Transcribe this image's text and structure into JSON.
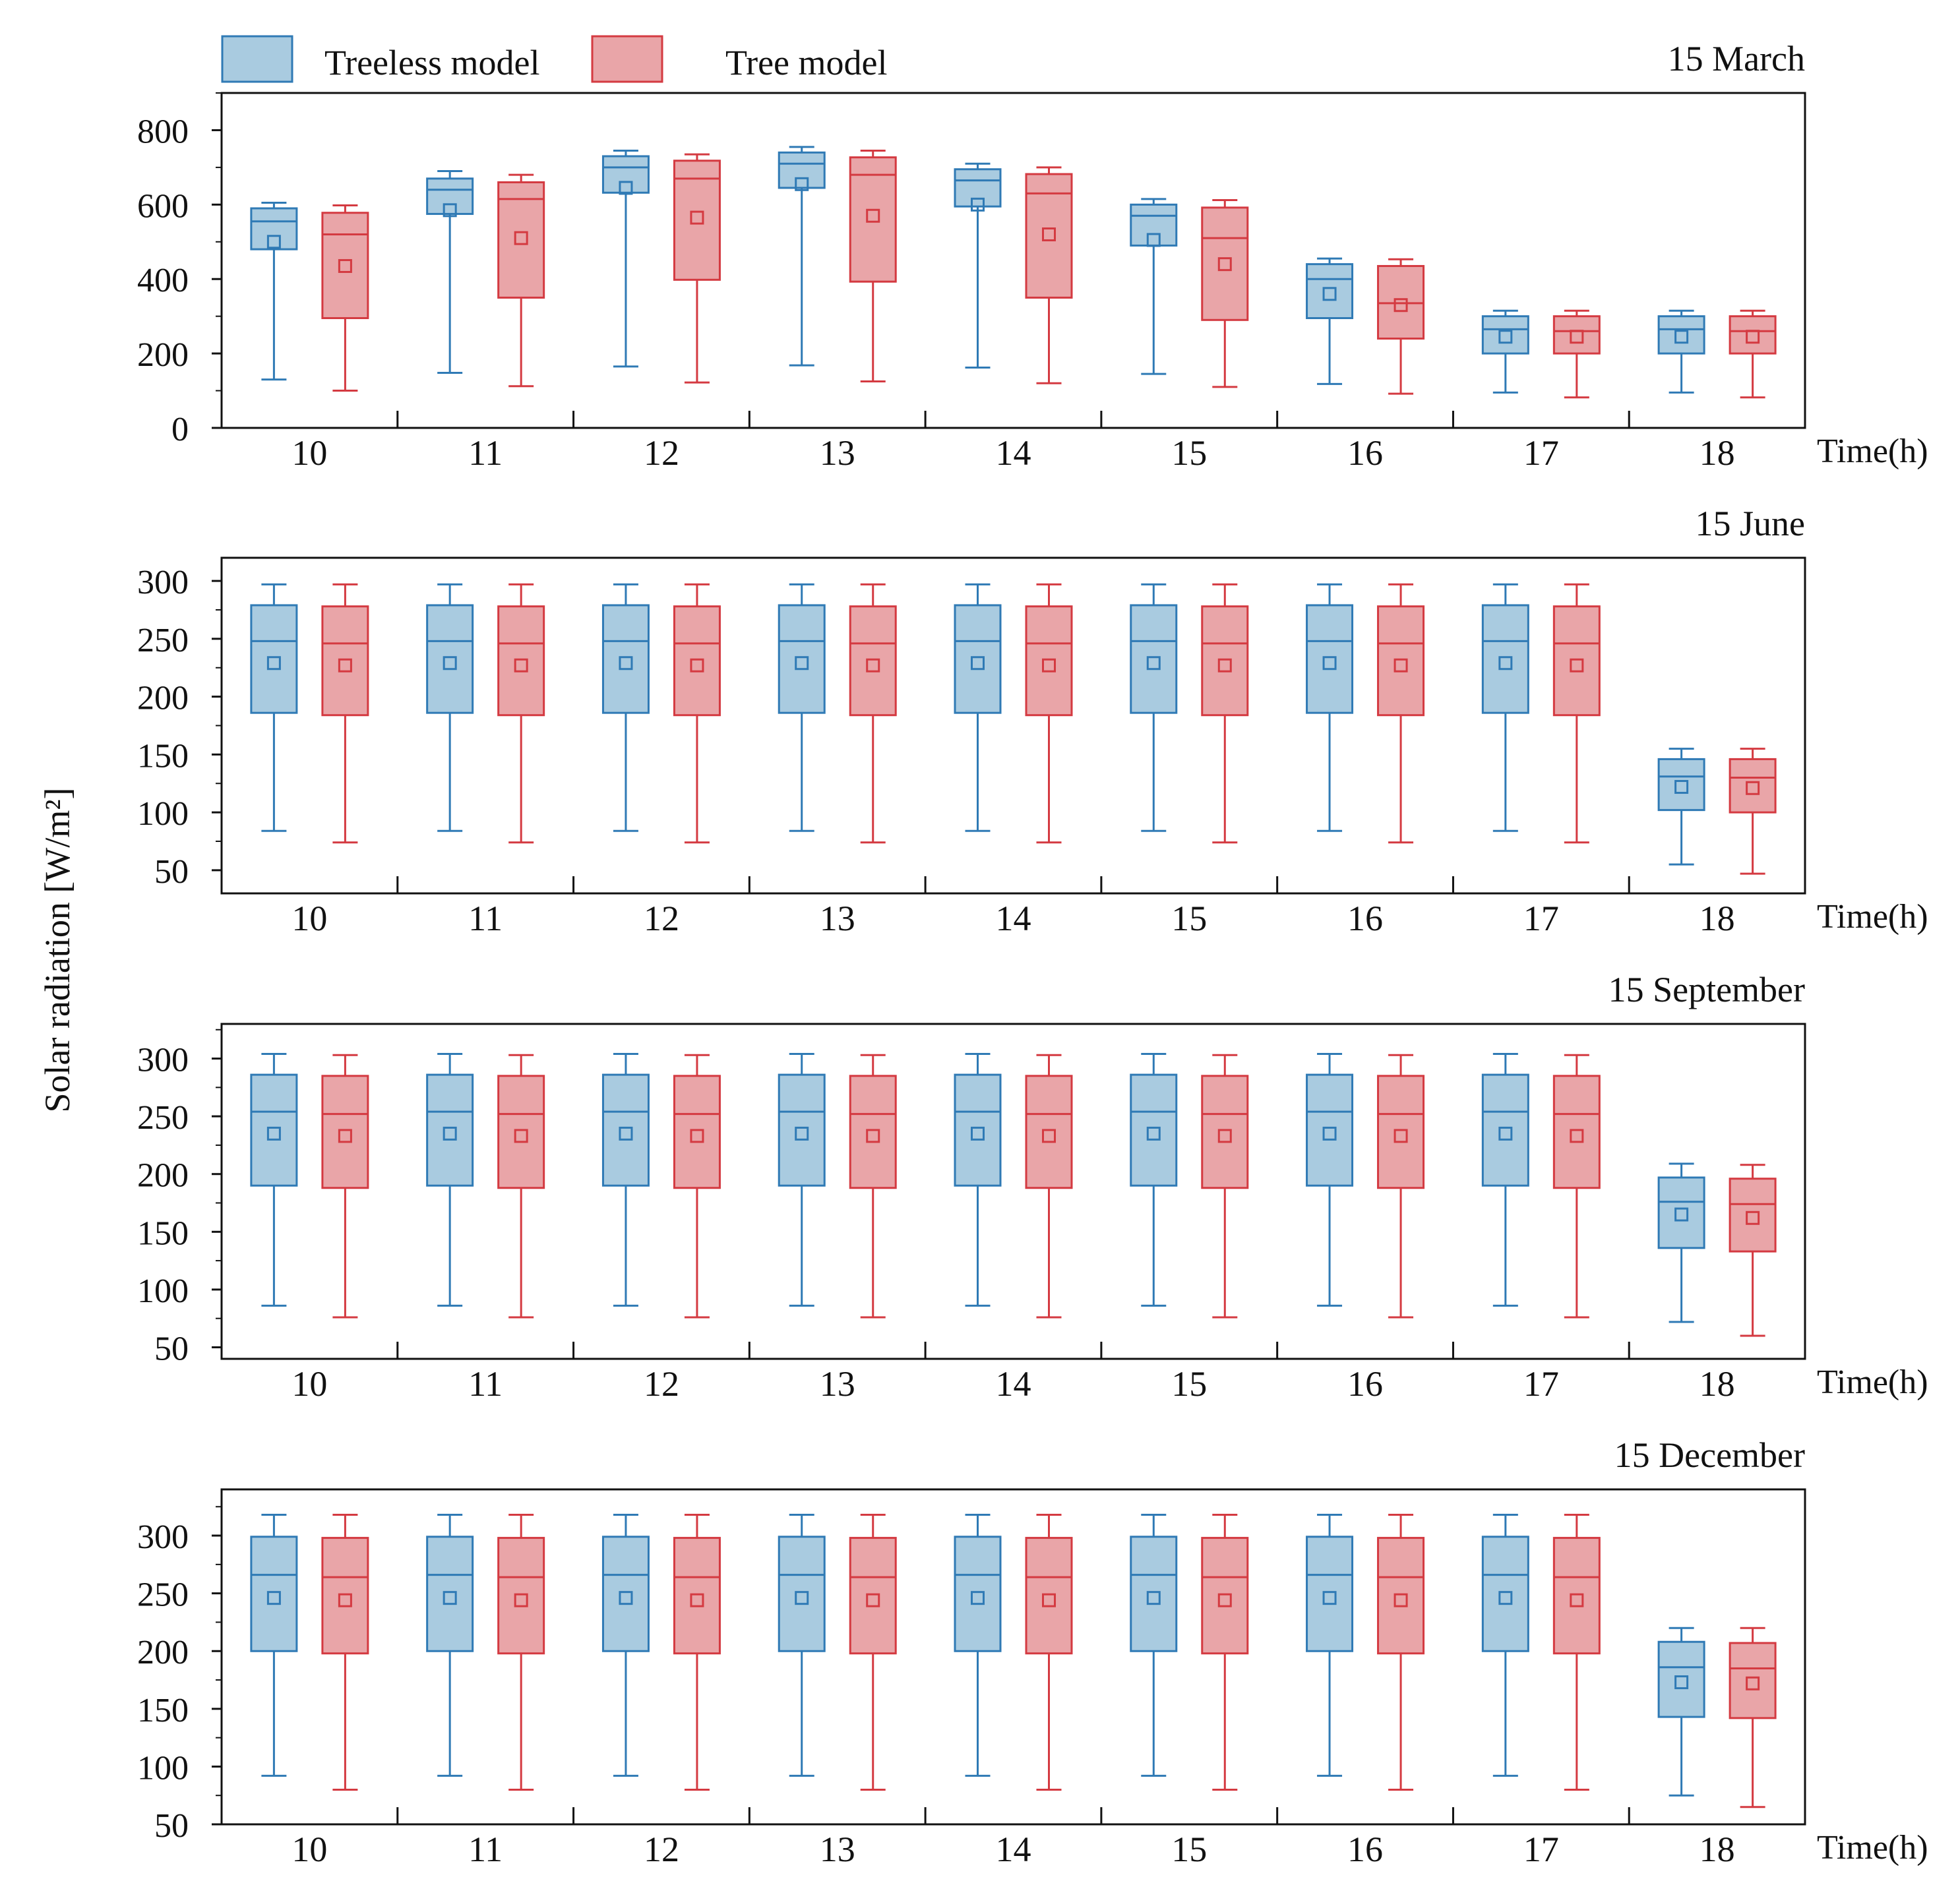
{
  "legend": {
    "items": [
      {
        "label": "Treeless model",
        "color_fill": "#a9cbe0",
        "color_stroke": "#2f7ab5"
      },
      {
        "label": "Tree model",
        "color_fill": "#e9a5a8",
        "color_stroke": "#d43a41"
      }
    ]
  },
  "y_axis_label": "Solar radiation [W/m²]",
  "time_label": "Time(h)",
  "chart_data": [
    {
      "type": "box",
      "title": "15 March",
      "xlabel": "Time(h)",
      "ylabel": "Solar radiation [W/m²]",
      "ylim": [
        0,
        900
      ],
      "yticks": [
        0,
        200,
        400,
        600,
        800
      ],
      "categories": [
        "10",
        "11",
        "12",
        "13",
        "14",
        "15",
        "16",
        "17",
        "18"
      ],
      "series": [
        {
          "name": "Treeless model",
          "boxes": [
            {
              "min": 130,
              "q1": 480,
              "median": 555,
              "q3": 590,
              "max": 605,
              "mean": 500
            },
            {
              "min": 148,
              "q1": 575,
              "median": 640,
              "q3": 670,
              "max": 690,
              "mean": 585
            },
            {
              "min": 165,
              "q1": 632,
              "median": 700,
              "q3": 730,
              "max": 745,
              "mean": 645
            },
            {
              "min": 168,
              "q1": 645,
              "median": 710,
              "q3": 740,
              "max": 755,
              "mean": 655
            },
            {
              "min": 162,
              "q1": 595,
              "median": 665,
              "q3": 695,
              "max": 710,
              "mean": 600
            },
            {
              "min": 145,
              "q1": 490,
              "median": 570,
              "q3": 600,
              "max": 615,
              "mean": 505
            },
            {
              "min": 118,
              "q1": 295,
              "median": 400,
              "q3": 440,
              "max": 455,
              "mean": 360
            },
            {
              "min": 95,
              "q1": 200,
              "median": 265,
              "q3": 300,
              "max": 315,
              "mean": 245
            },
            {
              "min": 95,
              "q1": 200,
              "median": 265,
              "q3": 300,
              "max": 315,
              "mean": 245
            }
          ]
        },
        {
          "name": "Tree model",
          "boxes": [
            {
              "min": 100,
              "q1": 295,
              "median": 520,
              "q3": 578,
              "max": 598,
              "mean": 435
            },
            {
              "min": 112,
              "q1": 350,
              "median": 615,
              "q3": 660,
              "max": 680,
              "mean": 510
            },
            {
              "min": 122,
              "q1": 398,
              "median": 670,
              "q3": 718,
              "max": 735,
              "mean": 565
            },
            {
              "min": 125,
              "q1": 393,
              "median": 680,
              "q3": 727,
              "max": 745,
              "mean": 570
            },
            {
              "min": 120,
              "q1": 350,
              "median": 630,
              "q3": 682,
              "max": 700,
              "mean": 520
            },
            {
              "min": 110,
              "q1": 290,
              "median": 510,
              "q3": 592,
              "max": 612,
              "mean": 440
            },
            {
              "min": 92,
              "q1": 240,
              "median": 335,
              "q3": 435,
              "max": 453,
              "mean": 330
            },
            {
              "min": 82,
              "q1": 200,
              "median": 260,
              "q3": 300,
              "max": 315,
              "mean": 245
            },
            {
              "min": 82,
              "q1": 200,
              "median": 260,
              "q3": 300,
              "max": 315,
              "mean": 245
            }
          ]
        }
      ]
    },
    {
      "type": "box",
      "title": "15 June",
      "xlabel": "Time(h)",
      "ylabel": "Solar radiation [W/m²]",
      "ylim": [
        30,
        320
      ],
      "yticks": [
        50,
        100,
        150,
        200,
        250,
        300
      ],
      "categories": [
        "10",
        "11",
        "12",
        "13",
        "14",
        "15",
        "16",
        "17",
        "18"
      ],
      "series": [
        {
          "name": "Treeless model",
          "boxes": [
            {
              "min": 84,
              "q1": 186,
              "median": 248,
              "q3": 279,
              "max": 297,
              "mean": 229
            },
            {
              "min": 84,
              "q1": 186,
              "median": 248,
              "q3": 279,
              "max": 297,
              "mean": 229
            },
            {
              "min": 84,
              "q1": 186,
              "median": 248,
              "q3": 279,
              "max": 297,
              "mean": 229
            },
            {
              "min": 84,
              "q1": 186,
              "median": 248,
              "q3": 279,
              "max": 297,
              "mean": 229
            },
            {
              "min": 84,
              "q1": 186,
              "median": 248,
              "q3": 279,
              "max": 297,
              "mean": 229
            },
            {
              "min": 84,
              "q1": 186,
              "median": 248,
              "q3": 279,
              "max": 297,
              "mean": 229
            },
            {
              "min": 84,
              "q1": 186,
              "median": 248,
              "q3": 279,
              "max": 297,
              "mean": 229
            },
            {
              "min": 84,
              "q1": 186,
              "median": 248,
              "q3": 279,
              "max": 297,
              "mean": 229
            },
            {
              "min": 55,
              "q1": 102,
              "median": 131,
              "q3": 146,
              "max": 155,
              "mean": 122
            }
          ]
        },
        {
          "name": "Tree model",
          "boxes": [
            {
              "min": 74,
              "q1": 184,
              "median": 246,
              "q3": 278,
              "max": 297,
              "mean": 227
            },
            {
              "min": 74,
              "q1": 184,
              "median": 246,
              "q3": 278,
              "max": 297,
              "mean": 227
            },
            {
              "min": 74,
              "q1": 184,
              "median": 246,
              "q3": 278,
              "max": 297,
              "mean": 227
            },
            {
              "min": 74,
              "q1": 184,
              "median": 246,
              "q3": 278,
              "max": 297,
              "mean": 227
            },
            {
              "min": 74,
              "q1": 184,
              "median": 246,
              "q3": 278,
              "max": 297,
              "mean": 227
            },
            {
              "min": 74,
              "q1": 184,
              "median": 246,
              "q3": 278,
              "max": 297,
              "mean": 227
            },
            {
              "min": 74,
              "q1": 184,
              "median": 246,
              "q3": 278,
              "max": 297,
              "mean": 227
            },
            {
              "min": 74,
              "q1": 184,
              "median": 246,
              "q3": 278,
              "max": 297,
              "mean": 227
            },
            {
              "min": 47,
              "q1": 100,
              "median": 130,
              "q3": 146,
              "max": 155,
              "mean": 121
            }
          ]
        }
      ]
    },
    {
      "type": "box",
      "title": "15 September",
      "xlabel": "Time(h)",
      "ylabel": "Solar radiation [W/m²]",
      "ylim": [
        40,
        330
      ],
      "yticks": [
        50,
        100,
        150,
        200,
        250,
        300
      ],
      "categories": [
        "10",
        "11",
        "12",
        "13",
        "14",
        "15",
        "16",
        "17",
        "18"
      ],
      "series": [
        {
          "name": "Treeless model",
          "boxes": [
            {
              "min": 86,
              "q1": 190,
              "median": 254,
              "q3": 286,
              "max": 304,
              "mean": 235
            },
            {
              "min": 86,
              "q1": 190,
              "median": 254,
              "q3": 286,
              "max": 304,
              "mean": 235
            },
            {
              "min": 86,
              "q1": 190,
              "median": 254,
              "q3": 286,
              "max": 304,
              "mean": 235
            },
            {
              "min": 86,
              "q1": 190,
              "median": 254,
              "q3": 286,
              "max": 304,
              "mean": 235
            },
            {
              "min": 86,
              "q1": 190,
              "median": 254,
              "q3": 286,
              "max": 304,
              "mean": 235
            },
            {
              "min": 86,
              "q1": 190,
              "median": 254,
              "q3": 286,
              "max": 304,
              "mean": 235
            },
            {
              "min": 86,
              "q1": 190,
              "median": 254,
              "q3": 286,
              "max": 304,
              "mean": 235
            },
            {
              "min": 86,
              "q1": 190,
              "median": 254,
              "q3": 286,
              "max": 304,
              "mean": 235
            },
            {
              "min": 72,
              "q1": 136,
              "median": 176,
              "q3": 197,
              "max": 209,
              "mean": 165
            }
          ]
        },
        {
          "name": "Tree model",
          "boxes": [
            {
              "min": 76,
              "q1": 188,
              "median": 252,
              "q3": 285,
              "max": 303,
              "mean": 233
            },
            {
              "min": 76,
              "q1": 188,
              "median": 252,
              "q3": 285,
              "max": 303,
              "mean": 233
            },
            {
              "min": 76,
              "q1": 188,
              "median": 252,
              "q3": 285,
              "max": 303,
              "mean": 233
            },
            {
              "min": 76,
              "q1": 188,
              "median": 252,
              "q3": 285,
              "max": 303,
              "mean": 233
            },
            {
              "min": 76,
              "q1": 188,
              "median": 252,
              "q3": 285,
              "max": 303,
              "mean": 233
            },
            {
              "min": 76,
              "q1": 188,
              "median": 252,
              "q3": 285,
              "max": 303,
              "mean": 233
            },
            {
              "min": 76,
              "q1": 188,
              "median": 252,
              "q3": 285,
              "max": 303,
              "mean": 233
            },
            {
              "min": 76,
              "q1": 188,
              "median": 252,
              "q3": 285,
              "max": 303,
              "mean": 233
            },
            {
              "min": 60,
              "q1": 133,
              "median": 174,
              "q3": 196,
              "max": 208,
              "mean": 162
            }
          ]
        }
      ]
    },
    {
      "type": "box",
      "title": "15 December",
      "xlabel": "Time(h)",
      "ylabel": "Solar radiation [W/m²]",
      "ylim": [
        50,
        340
      ],
      "yticks": [
        50,
        100,
        150,
        200,
        250,
        300
      ],
      "categories": [
        "10",
        "11",
        "12",
        "13",
        "14",
        "15",
        "16",
        "17",
        "18"
      ],
      "series": [
        {
          "name": "Treeless model",
          "boxes": [
            {
              "min": 92,
              "q1": 200,
              "median": 266,
              "q3": 299,
              "max": 318,
              "mean": 246
            },
            {
              "min": 92,
              "q1": 200,
              "median": 266,
              "q3": 299,
              "max": 318,
              "mean": 246
            },
            {
              "min": 92,
              "q1": 200,
              "median": 266,
              "q3": 299,
              "max": 318,
              "mean": 246
            },
            {
              "min": 92,
              "q1": 200,
              "median": 266,
              "q3": 299,
              "max": 318,
              "mean": 246
            },
            {
              "min": 92,
              "q1": 200,
              "median": 266,
              "q3": 299,
              "max": 318,
              "mean": 246
            },
            {
              "min": 92,
              "q1": 200,
              "median": 266,
              "q3": 299,
              "max": 318,
              "mean": 246
            },
            {
              "min": 92,
              "q1": 200,
              "median": 266,
              "q3": 299,
              "max": 318,
              "mean": 246
            },
            {
              "min": 92,
              "q1": 200,
              "median": 266,
              "q3": 299,
              "max": 318,
              "mean": 246
            },
            {
              "min": 75,
              "q1": 143,
              "median": 186,
              "q3": 208,
              "max": 220,
              "mean": 173
            }
          ]
        },
        {
          "name": "Tree model",
          "boxes": [
            {
              "min": 80,
              "q1": 198,
              "median": 264,
              "q3": 298,
              "max": 318,
              "mean": 244
            },
            {
              "min": 80,
              "q1": 198,
              "median": 264,
              "q3": 298,
              "max": 318,
              "mean": 244
            },
            {
              "min": 80,
              "q1": 198,
              "median": 264,
              "q3": 298,
              "max": 318,
              "mean": 244
            },
            {
              "min": 80,
              "q1": 198,
              "median": 264,
              "q3": 298,
              "max": 318,
              "mean": 244
            },
            {
              "min": 80,
              "q1": 198,
              "median": 264,
              "q3": 298,
              "max": 318,
              "mean": 244
            },
            {
              "min": 80,
              "q1": 198,
              "median": 264,
              "q3": 298,
              "max": 318,
              "mean": 244
            },
            {
              "min": 80,
              "q1": 198,
              "median": 264,
              "q3": 298,
              "max": 318,
              "mean": 244
            },
            {
              "min": 80,
              "q1": 198,
              "median": 264,
              "q3": 298,
              "max": 318,
              "mean": 244
            },
            {
              "min": 65,
              "q1": 142,
              "median": 185,
              "q3": 207,
              "max": 220,
              "mean": 172
            }
          ]
        }
      ]
    }
  ]
}
